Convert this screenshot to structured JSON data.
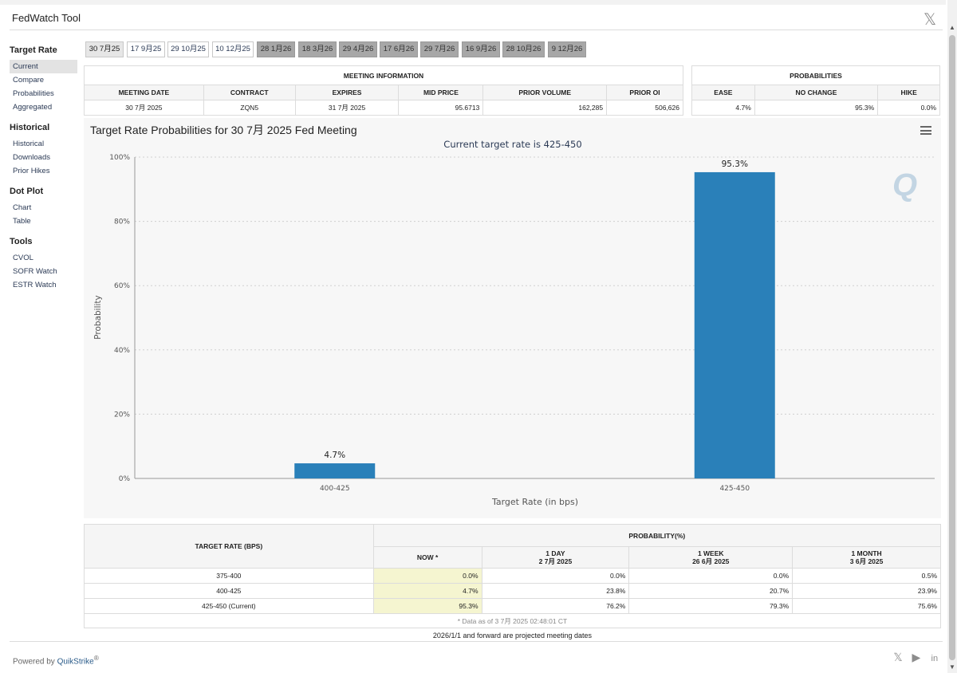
{
  "app": {
    "title": "FedWatch Tool",
    "close_glyph": "𝕏"
  },
  "sidebar": {
    "sections": [
      {
        "heading": "Target Rate",
        "items": [
          "Current",
          "Compare",
          "Probabilities",
          "Aggregated"
        ]
      },
      {
        "heading": "Historical",
        "items": [
          "Historical",
          "Downloads",
          "Prior Hikes"
        ]
      },
      {
        "heading": "Dot Plot",
        "items": [
          "Chart",
          "Table"
        ]
      },
      {
        "heading": "Tools",
        "items": [
          "CVOL",
          "SOFR Watch",
          "ESTR Watch"
        ]
      }
    ],
    "active_item": "Current"
  },
  "tabs": [
    {
      "label": "30 7月25",
      "state": "selected"
    },
    {
      "label": "17 9月25",
      "state": "normal"
    },
    {
      "label": "29 10月25",
      "state": "normal"
    },
    {
      "label": "10 12月25",
      "state": "normal"
    },
    {
      "label": "28 1月26",
      "state": "future"
    },
    {
      "label": "18 3月26",
      "state": "future"
    },
    {
      "label": "29 4月26",
      "state": "future"
    },
    {
      "label": "17 6月26",
      "state": "future"
    },
    {
      "label": "29 7月26",
      "state": "future"
    },
    {
      "label": "16 9月26",
      "state": "future"
    },
    {
      "label": "28 10月26",
      "state": "future"
    },
    {
      "label": "9 12月26",
      "state": "future"
    }
  ],
  "meeting_info": {
    "caption": "MEETING INFORMATION",
    "headers": [
      "MEETING DATE",
      "CONTRACT",
      "EXPIRES",
      "MID PRICE",
      "PRIOR VOLUME",
      "PRIOR OI"
    ],
    "values": [
      "30 7月 2025",
      "ZQN5",
      "31 7月 2025",
      "95.6713",
      "162,285",
      "506,626"
    ]
  },
  "probabilities": {
    "caption": "PROBABILITIES",
    "headers": [
      "EASE",
      "NO CHANGE",
      "HIKE"
    ],
    "values": [
      "4.7%",
      "95.3%",
      "0.0%"
    ]
  },
  "chart": {
    "menu_icon": "hamburger-menu-icon",
    "logo": "Q"
  },
  "chart_data": {
    "type": "bar",
    "title": "Target Rate Probabilities for 30 7月 2025 Fed Meeting",
    "subtitle": "Current target rate is 425-450",
    "xlabel": "Target Rate (in bps)",
    "ylabel": "Probability",
    "categories": [
      "400-425",
      "425-450"
    ],
    "values": [
      4.7,
      95.3
    ],
    "data_labels": [
      "4.7%",
      "95.3%"
    ],
    "ylim": [
      0,
      100
    ],
    "yticks": [
      "0%",
      "20%",
      "40%",
      "60%",
      "80%",
      "100%"
    ],
    "grid": true,
    "bar_color": "#2a80b9"
  },
  "rate_table": {
    "col_header": "TARGET RATE (BPS)",
    "group_header": "PROBABILITY(%)",
    "sub_headers": [
      {
        "line1": "NOW *",
        "line2": ""
      },
      {
        "line1": "1 DAY",
        "line2": "2 7月 2025"
      },
      {
        "line1": "1 WEEK",
        "line2": "26 6月 2025"
      },
      {
        "line1": "1 MONTH",
        "line2": "3 6月 2025"
      }
    ],
    "rows": [
      {
        "rate": "375-400",
        "now": "0.0%",
        "day": "0.0%",
        "week": "0.0%",
        "month": "0.5%"
      },
      {
        "rate": "400-425",
        "now": "4.7%",
        "day": "23.8%",
        "week": "20.7%",
        "month": "23.9%"
      },
      {
        "rate": "425-450 (Current)",
        "now": "95.3%",
        "day": "76.2%",
        "week": "79.3%",
        "month": "75.6%"
      }
    ],
    "footnote": "* Data as of 3 7月 2025 02:48:01 CT"
  },
  "projected_note": "2026/1/1 and forward are projected meeting dates",
  "footer": {
    "powered_by": "Powered by",
    "brand": "QuikStrike",
    "brand_mark": "®",
    "social": [
      {
        "icon": "x-icon",
        "glyph": "𝕏"
      },
      {
        "icon": "youtube-icon",
        "glyph": "▶"
      },
      {
        "icon": "linkedin-icon",
        "glyph": "in"
      }
    ]
  }
}
